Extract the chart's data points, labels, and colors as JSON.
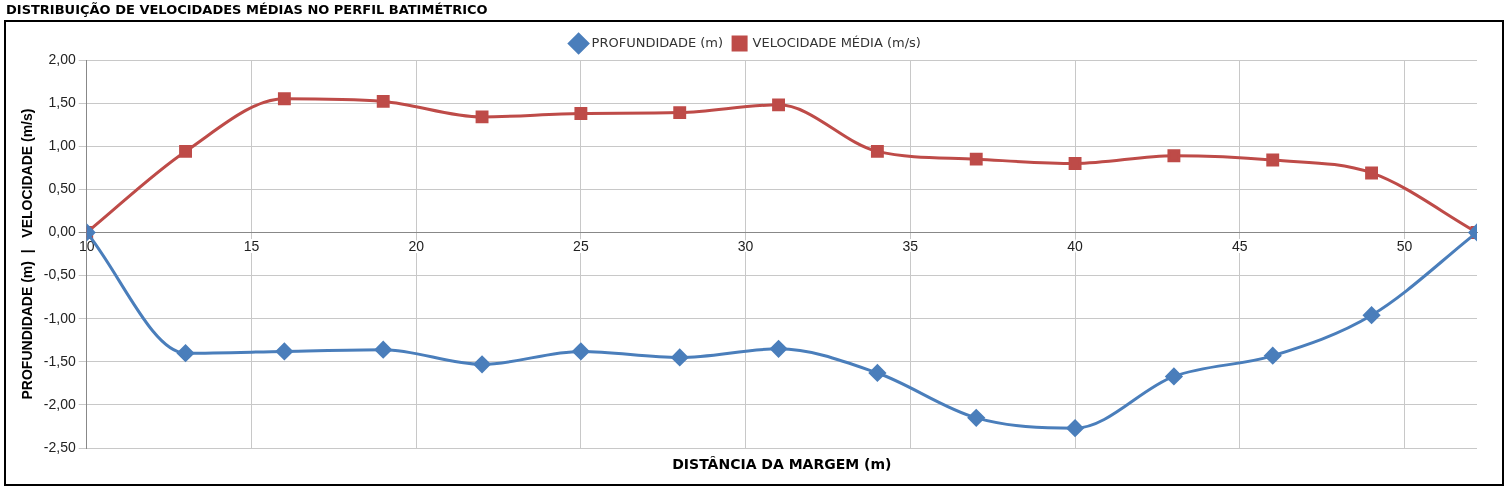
{
  "chart_data": {
    "type": "line",
    "title": "DISTRIBUIÇÃO DE VELOCIDADES MÉDIAS NO PERFIL BATIMÉTRICO",
    "xlabel": "DISTÂNCIA DA MARGEM (m)",
    "ylabel": "PROFUNDIDADE (m)  |   VELOCIDADE (m/s)",
    "x": [
      10,
      13,
      16,
      19,
      22,
      25,
      28,
      31,
      34,
      37,
      40,
      43,
      46,
      49,
      52.2
    ],
    "series": [
      {
        "name": "PROFUNDIDADE (m)",
        "color": "#4a7ebb",
        "marker": "diamond",
        "values": [
          0,
          -1.4,
          -1.38,
          -1.36,
          -1.53,
          -1.38,
          -1.45,
          -1.35,
          -1.63,
          -2.15,
          -2.27,
          -1.67,
          -1.43,
          -0.96,
          0
        ]
      },
      {
        "name": "VELOCIDADE MÉDIA (m/s)",
        "color": "#be4b48",
        "marker": "square",
        "values": [
          0,
          0.94,
          1.55,
          1.52,
          1.34,
          1.38,
          1.39,
          1.48,
          0.94,
          0.85,
          0.8,
          0.89,
          0.84,
          0.69,
          0
        ]
      }
    ],
    "xlim": [
      10,
      52.2
    ],
    "xticks": [
      10,
      15,
      20,
      25,
      30,
      35,
      40,
      45,
      50
    ],
    "ylim": [
      -2.5,
      2
    ],
    "yticks": [
      {
        "value": -2.5,
        "label": "-2,50"
      },
      {
        "value": -2,
        "label": "-2,00"
      },
      {
        "value": -1.5,
        "label": "-1,50"
      },
      {
        "value": -1,
        "label": "-1,00"
      },
      {
        "value": -0.5,
        "label": "-0,50"
      },
      {
        "value": 0,
        "label": "0,00"
      },
      {
        "value": 0.5,
        "label": "0,50"
      },
      {
        "value": 1,
        "label": "1,00"
      },
      {
        "value": 1.5,
        "label": "1,50"
      },
      {
        "value": 2,
        "label": "2,00"
      }
    ],
    "grid": true,
    "legend": "top",
    "line_style": "solid"
  }
}
